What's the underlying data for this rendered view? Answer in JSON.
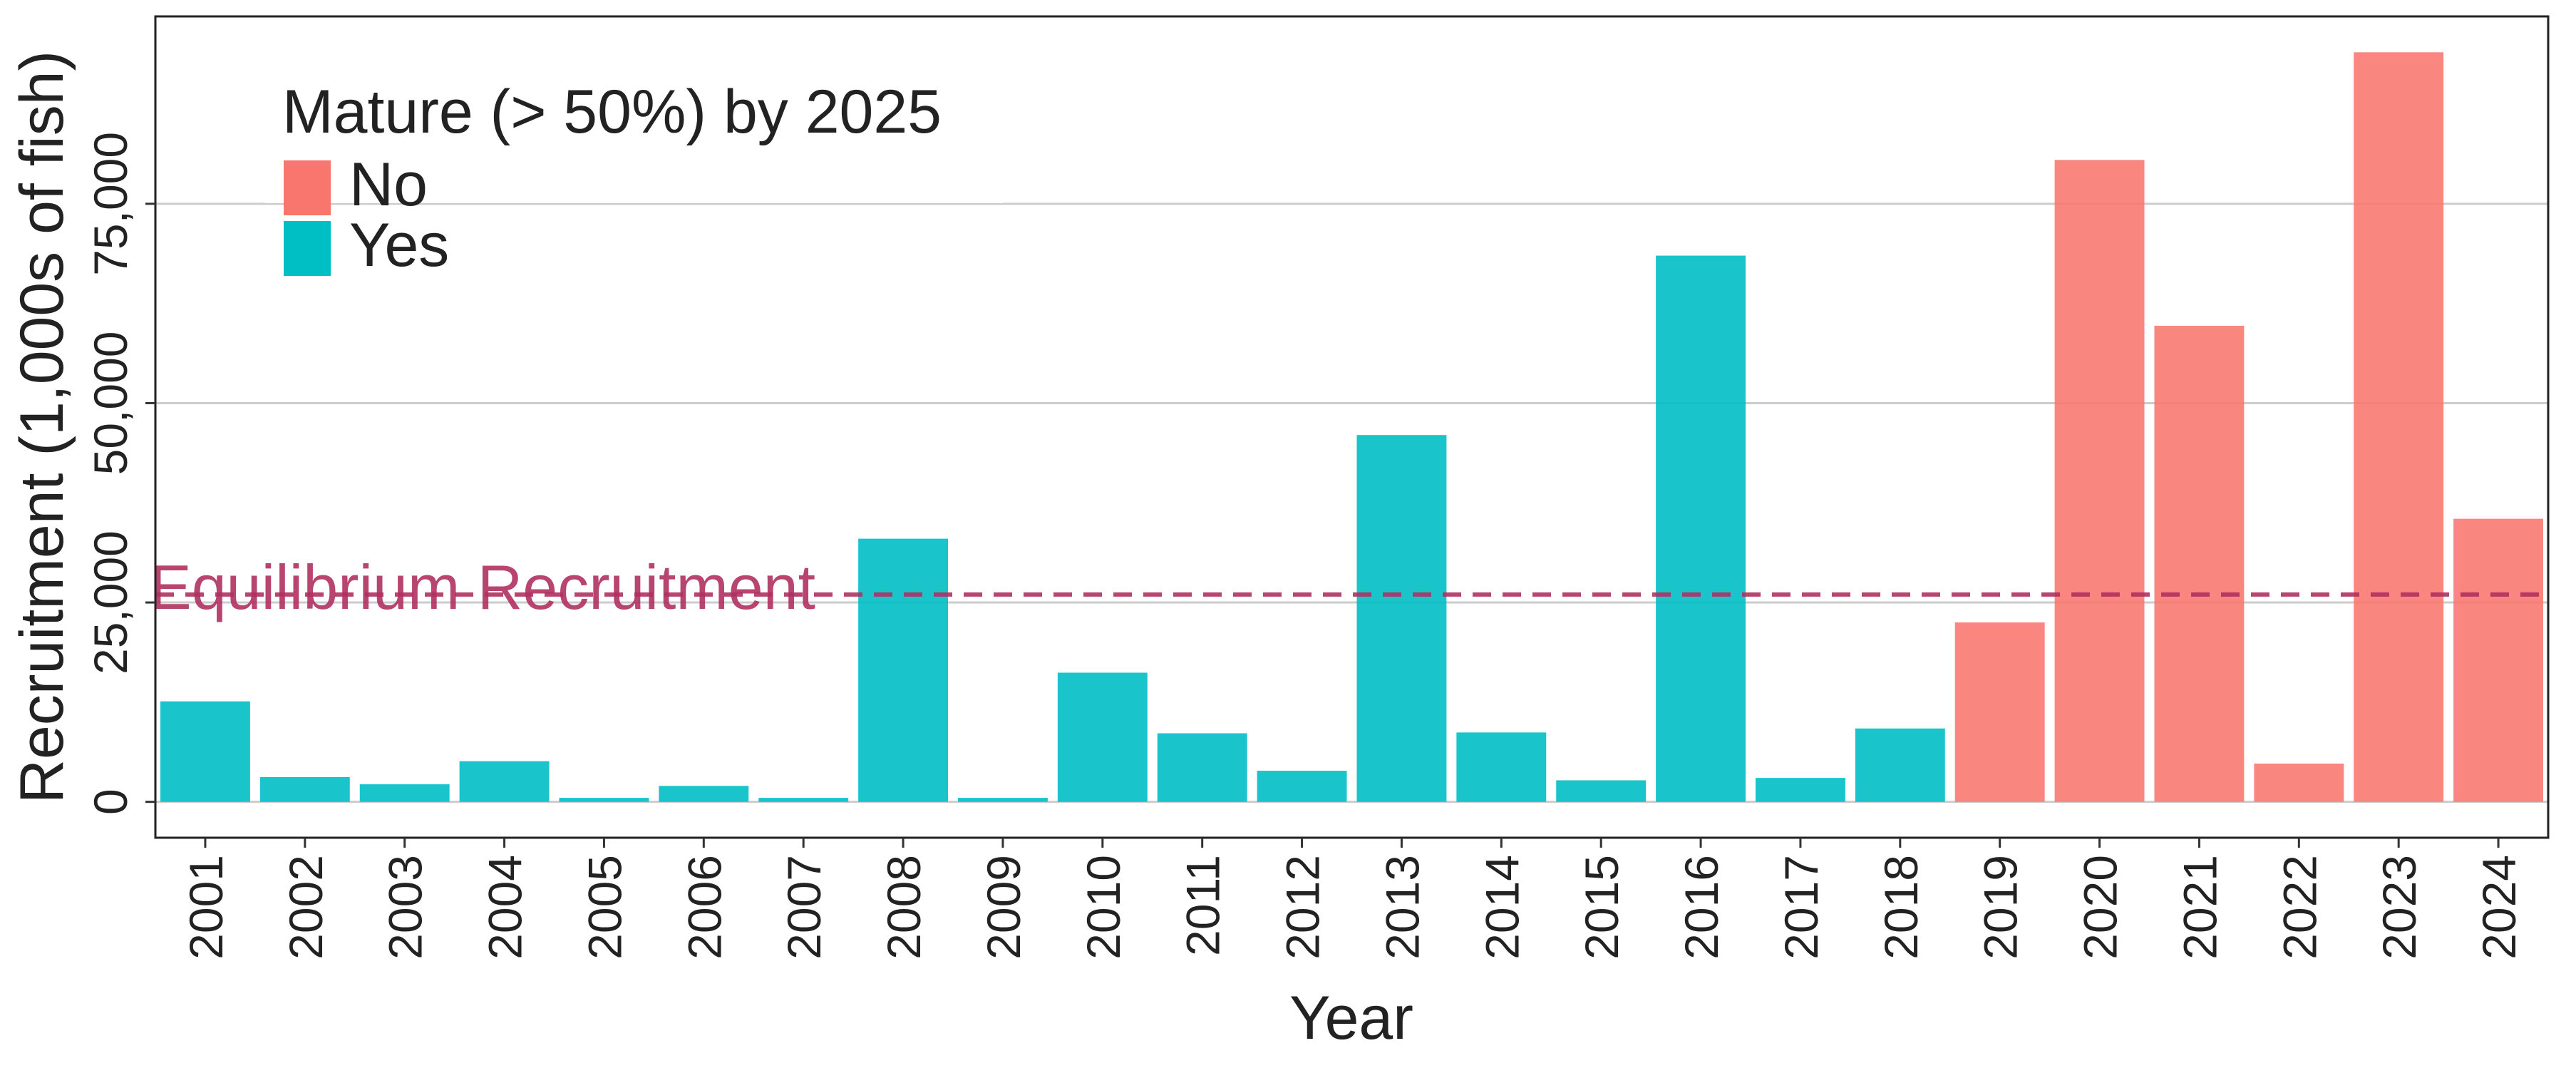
{
  "chart_data": {
    "type": "bar",
    "title": "",
    "xlabel": "Year",
    "ylabel": "Recruitment (1,000s of fish)",
    "categories": [
      "2001",
      "2002",
      "2003",
      "2004",
      "2005",
      "2006",
      "2007",
      "2008",
      "2009",
      "2010",
      "2011",
      "2012",
      "2013",
      "2014",
      "2015",
      "2016",
      "2017",
      "2018",
      "2019",
      "2020",
      "2021",
      "2022",
      "2023",
      "2024"
    ],
    "values": [
      12600,
      3100,
      2200,
      5100,
      500,
      2000,
      500,
      33000,
      500,
      16200,
      8600,
      3900,
      46000,
      8700,
      2700,
      68500,
      3000,
      9200,
      22500,
      80500,
      59700,
      4800,
      94000,
      35500
    ],
    "mature": [
      "Yes",
      "Yes",
      "Yes",
      "Yes",
      "Yes",
      "Yes",
      "Yes",
      "Yes",
      "Yes",
      "Yes",
      "Yes",
      "Yes",
      "Yes",
      "Yes",
      "Yes",
      "Yes",
      "Yes",
      "Yes",
      "No",
      "No",
      "No",
      "No",
      "No",
      "No"
    ],
    "ylim": [
      -4500,
      98500
    ],
    "yticks": [
      0,
      25000,
      50000,
      75000
    ],
    "ytick_labels": [
      "0",
      "25,000",
      "50,000",
      "75,000"
    ],
    "grid": true,
    "legend": {
      "title": "Mature (> 50%) by 2025",
      "placement": "top-left",
      "entries": [
        {
          "label": "No",
          "color": "#F8766D"
        },
        {
          "label": "Yes",
          "color": "#00BFC4"
        }
      ]
    },
    "reference_line": {
      "label": "Equilibrium Recruitment",
      "value": 26000,
      "style": "dashed",
      "color": "#B03060"
    }
  }
}
